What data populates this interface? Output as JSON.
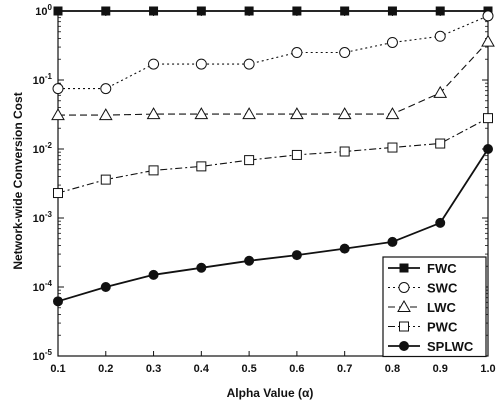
{
  "chart_data": {
    "type": "line",
    "xlabel": "Alpha Value (α)",
    "ylabel": "Network-wide Conversion Cost",
    "x": [
      0.1,
      0.2,
      0.3,
      0.4,
      0.5,
      0.6,
      0.7,
      0.8,
      0.9,
      1.0
    ],
    "x_ticks": [
      "0.1",
      "0.2",
      "0.3",
      "0.4",
      "0.5",
      "0.6",
      "0.7",
      "0.8",
      "0.9",
      "1.0"
    ],
    "y_scale": "log",
    "ylim": [
      1e-05,
      1
    ],
    "y_ticks": [
      {
        "base": "10",
        "exp": "0"
      },
      {
        "base": "10",
        "exp": "-1"
      },
      {
        "base": "10",
        "exp": "-2"
      },
      {
        "base": "10",
        "exp": "-3"
      },
      {
        "base": "10",
        "exp": "-4"
      },
      {
        "base": "10",
        "exp": "-5"
      }
    ],
    "legend_position": "bottom-right",
    "series": [
      {
        "name": "FWC",
        "marker": "square-filled",
        "line": "solid",
        "values": [
          1,
          1,
          1,
          1,
          1,
          1,
          1,
          1,
          1,
          1
        ]
      },
      {
        "name": "SWC",
        "marker": "circle-open",
        "line": "dotted",
        "values": [
          0.075,
          0.075,
          0.17,
          0.17,
          0.17,
          0.25,
          0.25,
          0.35,
          0.43,
          0.85
        ]
      },
      {
        "name": "LWC",
        "marker": "triangle-open",
        "line": "dashed",
        "values": [
          0.031,
          0.031,
          0.032,
          0.032,
          0.032,
          0.032,
          0.032,
          0.032,
          0.065,
          0.36
        ]
      },
      {
        "name": "PWC",
        "marker": "square-open",
        "line": "dashdot",
        "values": [
          0.0023,
          0.0036,
          0.0049,
          0.0056,
          0.0069,
          0.0082,
          0.0092,
          0.0105,
          0.012,
          0.028
        ]
      },
      {
        "name": "SPLWC",
        "marker": "circle-filled",
        "line": "solid",
        "values": [
          6.2e-05,
          0.0001,
          0.00015,
          0.00019,
          0.00024,
          0.00029,
          0.00036,
          0.00045,
          0.00085,
          0.01
        ]
      }
    ]
  }
}
